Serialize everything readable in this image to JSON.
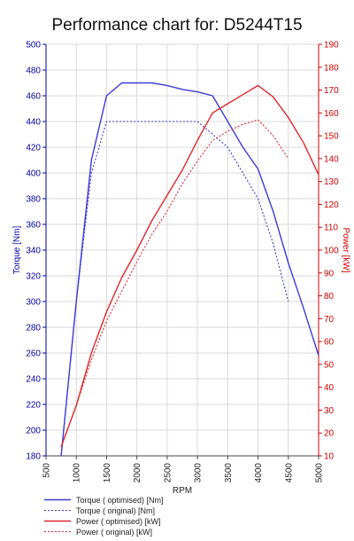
{
  "chart_data": {
    "type": "line",
    "title": "Performance chart for: D5244T15",
    "xlabel": "RPM",
    "ylabel_left": "Torque [Nm]",
    "ylabel_right": "Power [kW]",
    "xlim": [
      500,
      5000
    ],
    "ylim_left": [
      180,
      500
    ],
    "ylim_right": [
      10,
      190
    ],
    "x_ticks": [
      500,
      1000,
      1500,
      2000,
      2500,
      3000,
      3500,
      4000,
      4500,
      5000
    ],
    "y_left_ticks": [
      180,
      200,
      220,
      240,
      260,
      280,
      300,
      320,
      340,
      360,
      380,
      400,
      420,
      440,
      460,
      480,
      500
    ],
    "y_right_ticks": [
      10,
      20,
      30,
      40,
      50,
      60,
      70,
      80,
      90,
      100,
      110,
      120,
      130,
      140,
      150,
      160,
      170,
      180,
      190
    ],
    "grid": true,
    "legend_position": "bottom",
    "colors": {
      "torque": "#3b3bd6",
      "power": "#e0262b",
      "left_axis": "#0000a0",
      "right_axis": "#d00000"
    },
    "series": [
      {
        "name": "Torque ( optimised) [Nm]",
        "axis": "left",
        "color": "#3b3bd6",
        "dash": "solid",
        "x": [
          750,
          1000,
          1250,
          1500,
          1750,
          2000,
          2250,
          2500,
          2750,
          3000,
          3250,
          3500,
          3750,
          4000,
          4250,
          4500,
          4750,
          5000
        ],
        "y": [
          180,
          300,
          410,
          460,
          470,
          470,
          470,
          468,
          465,
          463,
          460,
          440,
          420,
          403,
          370,
          330,
          295,
          258
        ]
      },
      {
        "name": "Torque ( original) [Nm]",
        "axis": "left",
        "color": "#3b3bd6",
        "dash": "dotted",
        "x": [
          750,
          1000,
          1250,
          1500,
          1750,
          2000,
          2250,
          2500,
          2750,
          3000,
          3250,
          3500,
          3750,
          4000,
          4250,
          4500
        ],
        "y": [
          180,
          300,
          400,
          440,
          440,
          440,
          440,
          440,
          440,
          440,
          430,
          420,
          400,
          380,
          345,
          300
        ]
      },
      {
        "name": "Power ( optimised) [kW]",
        "axis": "right",
        "color": "#e0262b",
        "dash": "solid",
        "x": [
          750,
          1000,
          1250,
          1500,
          1750,
          2000,
          2250,
          2500,
          2750,
          3000,
          3250,
          3500,
          3750,
          4000,
          4250,
          4500,
          4750,
          5000
        ],
        "y": [
          14,
          32,
          55,
          73,
          88,
          100,
          113,
          124,
          135,
          148,
          160,
          164,
          168,
          172,
          167,
          158,
          147,
          133
        ]
      },
      {
        "name": "Power ( original) [kW]",
        "axis": "right",
        "color": "#e0262b",
        "dash": "dotted",
        "x": [
          750,
          1000,
          1250,
          1500,
          1750,
          2000,
          2250,
          2500,
          2750,
          3000,
          3250,
          3500,
          3750,
          4000,
          4250,
          4500
        ],
        "y": [
          14,
          32,
          52,
          69,
          82,
          95,
          107,
          117,
          129,
          139,
          148,
          152,
          155,
          157,
          150,
          140
        ]
      }
    ]
  }
}
